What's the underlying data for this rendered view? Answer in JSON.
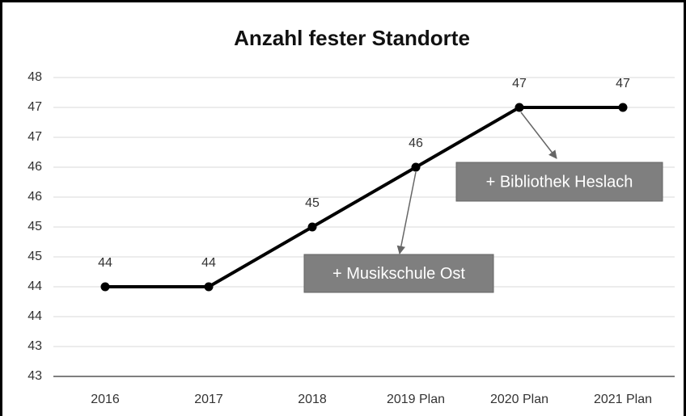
{
  "chart_data": {
    "type": "line",
    "title": "Anzahl fester Standorte",
    "categories": [
      "2016",
      "2017",
      "2018",
      "2019 Plan",
      "2020 Plan",
      "2021 Plan"
    ],
    "series": [
      {
        "name": "Anzahl fester Standorte",
        "color": "#000000",
        "values": [
          44,
          44,
          45,
          46,
          47,
          47
        ]
      }
    ],
    "ylim": [
      42.5,
      47.5
    ],
    "yticks": [
      {
        "value": 42.5,
        "label": "43"
      },
      43,
      {
        "value": 43.5,
        "label": "44"
      },
      44,
      {
        "value": 44.5,
        "label": "45"
      },
      45,
      {
        "value": 45.5,
        "label": "46"
      },
      46,
      {
        "value": 46.5,
        "label": "47"
      },
      47,
      {
        "value": 47.5,
        "label": "48"
      }
    ],
    "grid": true,
    "annotations": [
      {
        "text": "+ Musikschule Ost",
        "category": 3
      },
      {
        "text": "+ Bibliothek Heslach",
        "category": 4
      }
    ]
  }
}
